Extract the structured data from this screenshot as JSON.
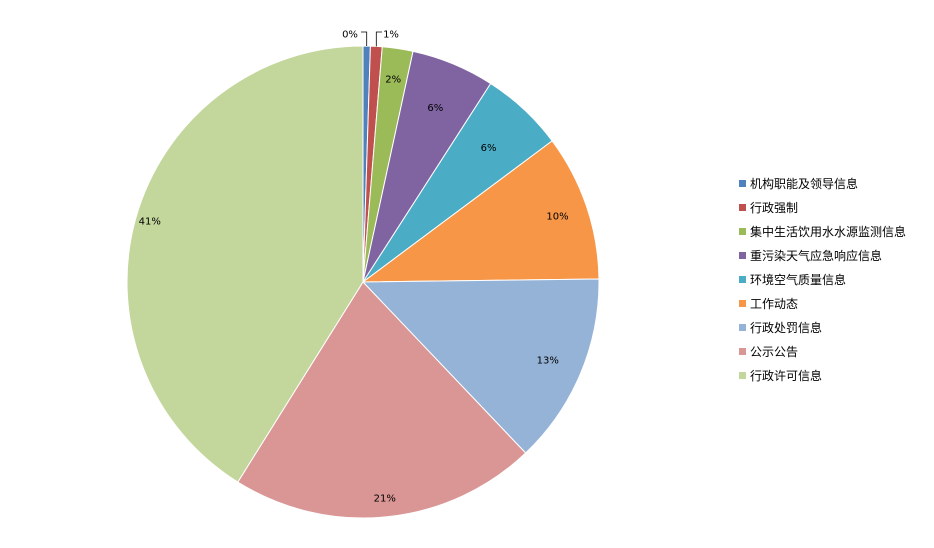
{
  "chart_data": {
    "type": "pie",
    "legend_position": "right",
    "slices": [
      {
        "label": "机构职能及领导信息",
        "value": 0.5,
        "display": "0%",
        "color": "#4f81bd"
      },
      {
        "label": "行政强制",
        "value": 0.8,
        "display": "1%",
        "color": "#c0504d"
      },
      {
        "label": "集中生活饮用水水源监测信息",
        "value": 2.1,
        "display": "2%",
        "color": "#9bbb59"
      },
      {
        "label": "重污染天气应急响应信息",
        "value": 5.7,
        "display": "6%",
        "color": "#8064a2"
      },
      {
        "label": "环境空气质量信息",
        "value": 5.7,
        "display": "6%",
        "color": "#4bacc6"
      },
      {
        "label": "工作动态",
        "value": 10.0,
        "display": "10%",
        "color": "#f79646"
      },
      {
        "label": "行政处罚信息",
        "value": 13.1,
        "display": "13%",
        "color": "#95b3d7"
      },
      {
        "label": "公示公告",
        "value": 21.0,
        "display": "21%",
        "color": "#d99694"
      },
      {
        "label": "行政许可信息",
        "value": 41.1,
        "display": "41%",
        "color": "#c3d69b"
      }
    ]
  }
}
